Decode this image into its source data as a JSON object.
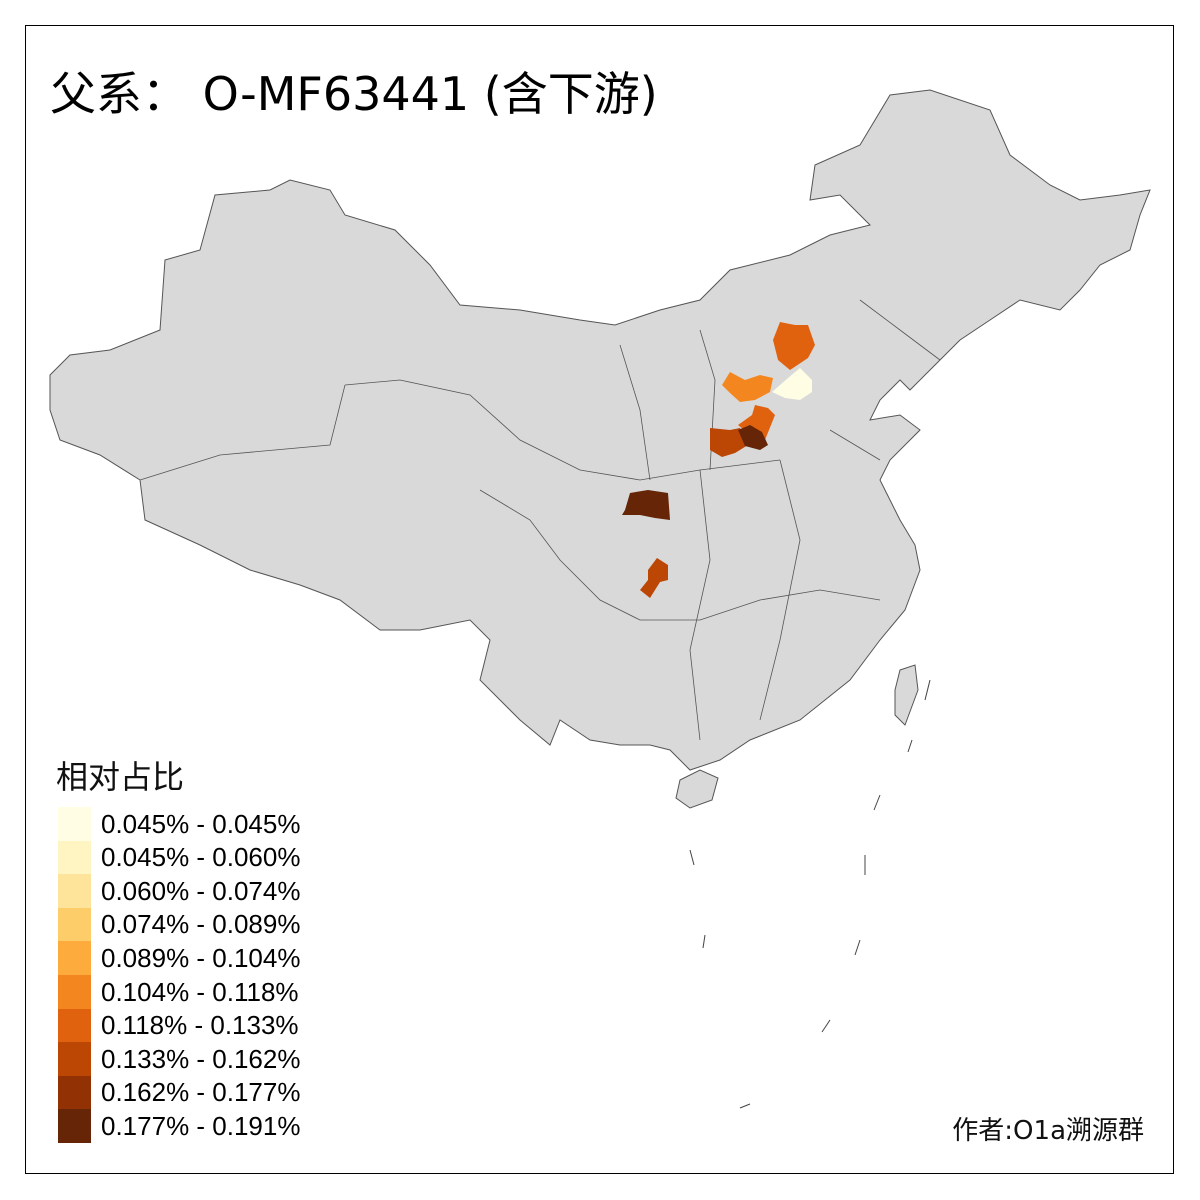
{
  "title": "父系： O-MF63441 (含下游)",
  "legend": {
    "title": "相对占比",
    "bins": [
      {
        "label": "0.045% - 0.045%",
        "color": "#FFFDE3"
      },
      {
        "label": "0.045% - 0.060%",
        "color": "#FFF5C2"
      },
      {
        "label": "0.060% - 0.074%",
        "color": "#FEE49A"
      },
      {
        "label": "0.074% - 0.089%",
        "color": "#FDCD6A"
      },
      {
        "label": "0.089% - 0.104%",
        "color": "#FDAB3C"
      },
      {
        "label": "0.104% - 0.118%",
        "color": "#F3861F"
      },
      {
        "label": "0.118% - 0.133%",
        "color": "#E0620F"
      },
      {
        "label": "0.133% - 0.162%",
        "color": "#BC4604"
      },
      {
        "label": "0.162% - 0.177%",
        "color": "#923104"
      },
      {
        "label": "0.177% - 0.191%",
        "color": "#662506"
      }
    ]
  },
  "map": {
    "base_fill": "#D9D9D9",
    "border_color": "#555555",
    "highlighted_region_bins": [
      6,
      5,
      0,
      6,
      7,
      9,
      9,
      7
    ]
  },
  "author": "作者:O1a溯源群"
}
